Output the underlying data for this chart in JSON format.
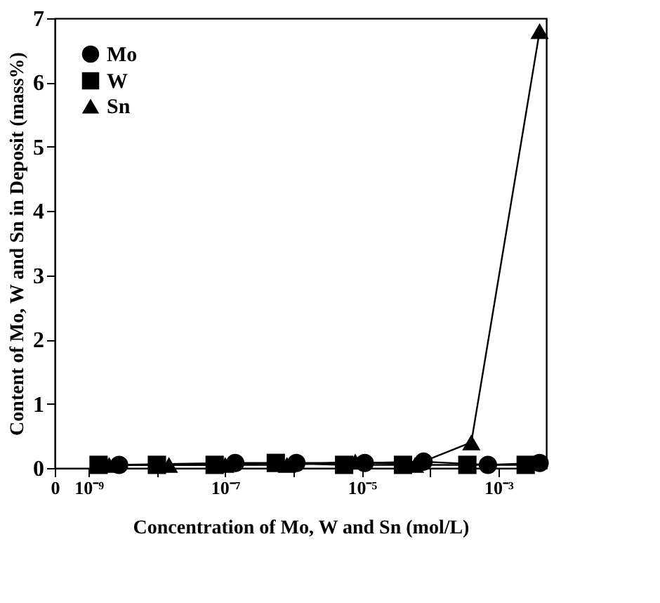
{
  "chart_data": {
    "type": "line",
    "xlabel": "Concentration of Mo, W and Sn (mol/L)",
    "ylabel": "Content of Mo, W and Sn in Deposit (mass%)",
    "log": "x",
    "xlim": [
      3.2e-10,
      0.005
    ],
    "ylim": [
      0,
      7
    ],
    "xticks": [
      {
        "value": 3.2e-10,
        "label": "0"
      },
      {
        "value": 1e-09,
        "label": "10⁻⁹"
      },
      {
        "value": 1e-08,
        "label": null
      },
      {
        "value": 1e-07,
        "label": "10⁻⁷"
      },
      {
        "value": 1e-06,
        "label": null
      },
      {
        "value": 1e-05,
        "label": "10⁻⁵"
      },
      {
        "value": 0.0001,
        "label": null
      },
      {
        "value": 0.001,
        "label": "10⁻³"
      }
    ],
    "yticks": [
      0,
      1,
      2,
      3,
      4,
      5,
      6,
      7
    ],
    "grid": false,
    "legend": "top left",
    "series": [
      {
        "name": "Mo",
        "color": "#000000",
        "marker": "circle",
        "x": [
          2.8e-09,
          1.6e-08,
          1.4e-07,
          1.1e-06,
          1.1e-05,
          8e-05,
          0.0007,
          0.004
        ],
        "values": [
          0.05,
          null,
          0.08,
          0.08,
          0.08,
          0.1,
          0.05,
          0.08
        ]
      },
      {
        "name": "W",
        "color": "#000000",
        "marker": "square",
        "x": [
          1.4e-09,
          1e-08,
          7e-08,
          5.5e-07,
          5.5e-06,
          4e-05,
          0.00035,
          0.0025
        ],
        "values": [
          0.05,
          0.05,
          0.05,
          0.08,
          0.05,
          0.05,
          0.05,
          0.05
        ]
      },
      {
        "name": "Sn",
        "color": "#000000",
        "marker": "triangle",
        "x": [
          2e-09,
          1.5e-08,
          1e-07,
          8e-07,
          8e-06,
          6e-05,
          0.0004,
          0.004
        ],
        "values": [
          0.05,
          0.05,
          0.05,
          0.05,
          0.1,
          0.05,
          0.4,
          6.8
        ]
      }
    ]
  }
}
